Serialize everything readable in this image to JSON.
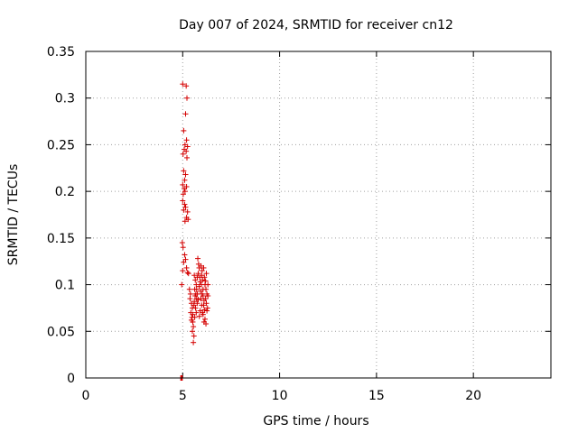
{
  "chart_data": {
    "type": "scatter",
    "title": "Day 007 of 2024, SRMTID for receiver cn12",
    "xlabel": "GPS time / hours",
    "ylabel": "SRMTID / TECUs",
    "xlim": [
      0,
      24
    ],
    "ylim": [
      0,
      0.35
    ],
    "xticks": [
      0,
      5,
      10,
      15,
      20
    ],
    "xtick_labels": [
      "0",
      "5",
      "10",
      "15",
      "20"
    ],
    "yticks": [
      0,
      0.05,
      0.1,
      0.15,
      0.2,
      0.25,
      0.3,
      0.35
    ],
    "ytick_labels": [
      "0",
      "0.05",
      "0.1",
      "0.15",
      "0.2",
      "0.25",
      "0.3",
      "0.35"
    ],
    "grid": true,
    "marker": "+",
    "marker_color": "#d40000",
    "series": [
      {
        "points": [
          [
            4.9,
            0.0
          ],
          [
            4.92,
            0.0
          ],
          [
            4.95,
            0.0
          ],
          [
            4.98,
            0.0
          ],
          [
            5.0,
            0.315
          ],
          [
            5.18,
            0.313
          ],
          [
            5.22,
            0.3
          ],
          [
            5.15,
            0.283
          ],
          [
            5.05,
            0.265
          ],
          [
            5.2,
            0.255
          ],
          [
            5.12,
            0.25
          ],
          [
            5.25,
            0.248
          ],
          [
            5.08,
            0.245
          ],
          [
            5.18,
            0.243
          ],
          [
            5.02,
            0.24
          ],
          [
            5.22,
            0.236
          ],
          [
            5.05,
            0.222
          ],
          [
            5.15,
            0.218
          ],
          [
            5.1,
            0.212
          ],
          [
            5.0,
            0.207
          ],
          [
            5.2,
            0.205
          ],
          [
            5.08,
            0.203
          ],
          [
            5.12,
            0.2
          ],
          [
            5.03,
            0.197
          ],
          [
            5.0,
            0.19
          ],
          [
            5.1,
            0.186
          ],
          [
            5.15,
            0.183
          ],
          [
            5.05,
            0.18
          ],
          [
            5.25,
            0.178
          ],
          [
            5.2,
            0.172
          ],
          [
            5.12,
            0.168
          ],
          [
            5.28,
            0.17
          ],
          [
            4.98,
            0.145
          ],
          [
            5.02,
            0.14
          ],
          [
            5.1,
            0.132
          ],
          [
            5.15,
            0.127
          ],
          [
            5.05,
            0.124
          ],
          [
            5.2,
            0.118
          ],
          [
            5.0,
            0.115
          ],
          [
            5.25,
            0.113
          ],
          [
            4.95,
            0.1
          ],
          [
            5.3,
            0.112
          ],
          [
            5.35,
            0.095
          ],
          [
            5.4,
            0.09
          ],
          [
            5.38,
            0.085
          ],
          [
            5.45,
            0.08
          ],
          [
            5.5,
            0.075
          ],
          [
            5.42,
            0.07
          ],
          [
            5.48,
            0.065
          ],
          [
            5.52,
            0.06
          ],
          [
            5.55,
            0.055
          ],
          [
            5.5,
            0.05
          ],
          [
            5.58,
            0.045
          ],
          [
            5.55,
            0.038
          ],
          [
            5.6,
            0.11
          ],
          [
            5.65,
            0.105
          ],
          [
            5.7,
            0.1
          ],
          [
            5.62,
            0.095
          ],
          [
            5.68,
            0.09
          ],
          [
            5.72,
            0.085
          ],
          [
            5.75,
            0.08
          ],
          [
            5.66,
            0.075
          ],
          [
            5.7,
            0.07
          ],
          [
            5.62,
            0.065
          ],
          [
            5.58,
            0.078
          ],
          [
            5.64,
            0.088
          ],
          [
            5.78,
            0.128
          ],
          [
            5.82,
            0.122
          ],
          [
            5.85,
            0.118
          ],
          [
            5.8,
            0.112
          ],
          [
            5.88,
            0.108
          ],
          [
            5.9,
            0.103
          ],
          [
            5.85,
            0.098
          ],
          [
            5.92,
            0.093
          ],
          [
            5.95,
            0.12
          ],
          [
            6.0,
            0.115
          ],
          [
            5.98,
            0.11
          ],
          [
            6.02,
            0.105
          ],
          [
            5.96,
            0.1
          ],
          [
            6.05,
            0.095
          ],
          [
            6.0,
            0.09
          ],
          [
            5.94,
            0.085
          ],
          [
            6.1,
            0.083
          ],
          [
            6.08,
            0.078
          ],
          [
            6.12,
            0.073
          ],
          [
            6.05,
            0.068
          ],
          [
            6.15,
            0.063
          ],
          [
            6.1,
            0.06
          ],
          [
            6.2,
            0.058
          ],
          [
            6.02,
            0.07
          ],
          [
            6.15,
            0.1
          ],
          [
            6.2,
            0.095
          ],
          [
            6.25,
            0.09
          ],
          [
            6.18,
            0.085
          ],
          [
            6.22,
            0.08
          ],
          [
            6.28,
            0.075
          ],
          [
            6.3,
            0.088
          ],
          [
            6.25,
            0.072
          ],
          [
            6.3,
            0.1
          ],
          [
            6.22,
            0.112
          ],
          [
            6.08,
            0.118
          ],
          [
            5.75,
            0.108
          ],
          [
            5.72,
            0.095
          ],
          [
            5.6,
            0.082
          ],
          [
            5.52,
            0.068
          ],
          [
            5.45,
            0.062
          ],
          [
            6.12,
            0.108
          ],
          [
            6.18,
            0.104
          ],
          [
            6.05,
            0.088
          ],
          [
            5.98,
            0.078
          ],
          [
            5.9,
            0.072
          ],
          [
            5.86,
            0.066
          ],
          [
            5.8,
            0.084
          ],
          [
            5.76,
            0.09
          ]
        ]
      }
    ]
  }
}
